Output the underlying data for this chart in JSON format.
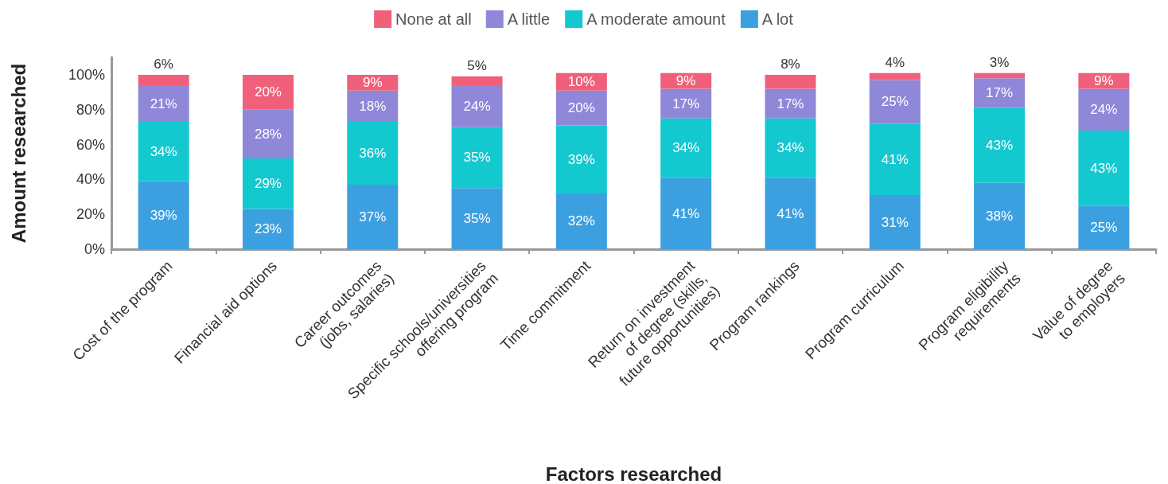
{
  "chart_data": {
    "type": "bar",
    "stacked": true,
    "xlabel": "Factors researched",
    "ylabel": "Amount researched",
    "categories": [
      "Cost of the program",
      "Financial aid options",
      "Career outcomes\n(jobs, salaries)",
      "Specific schools/universities\noffering program",
      "Time commitment",
      "Return on investment\nof degree (skills,\nfuture opportunities)",
      "Program rankings",
      "Program curriculum",
      "Program eligibility\nrequirements",
      "Value of degree\nto employers"
    ],
    "series": [
      {
        "name": "A lot",
        "color": "#3ca0e0",
        "values": [
          39,
          23,
          37,
          35,
          32,
          41,
          41,
          31,
          38,
          25
        ],
        "value_labels": [
          "39%",
          "23%",
          "37%",
          "35%",
          "32%",
          "41%",
          "41%",
          "31%",
          "38%",
          "25%"
        ]
      },
      {
        "name": "A moderate amount",
        "color": "#14c8d0",
        "values": [
          34,
          29,
          36,
          35,
          39,
          34,
          34,
          41,
          43,
          43
        ],
        "value_labels": [
          "34%",
          "29%",
          "36%",
          "35%",
          "39%",
          "34%",
          "34%",
          "41%",
          "43%",
          "43%"
        ]
      },
      {
        "name": "A little",
        "color": "#8f87d8",
        "values": [
          21,
          28,
          18,
          24,
          20,
          17,
          17,
          25,
          17,
          24
        ],
        "value_labels": [
          "21%",
          "28%",
          "18%",
          "24%",
          "20%",
          "17%",
          "17%",
          "25%",
          "17%",
          "24%"
        ]
      },
      {
        "name": "None at all",
        "color": "#f0607a",
        "values": [
          6,
          20,
          9,
          5,
          10,
          9,
          8,
          4,
          3,
          9
        ],
        "value_labels": [
          "6%",
          "20%",
          "9%",
          "5%",
          "10%",
          "9%",
          "8%",
          "4%",
          "3%",
          "9%"
        ]
      }
    ],
    "ylim": [
      0,
      110
    ],
    "yticks": [
      {
        "value": 0,
        "label": "0%"
      },
      {
        "value": 20,
        "label": "20%"
      },
      {
        "value": 40,
        "label": "40%"
      },
      {
        "value": 60,
        "label": "60%"
      },
      {
        "value": 80,
        "label": "80%"
      },
      {
        "value": 100,
        "label": "100%"
      }
    ],
    "grid": false,
    "legend": "top"
  }
}
